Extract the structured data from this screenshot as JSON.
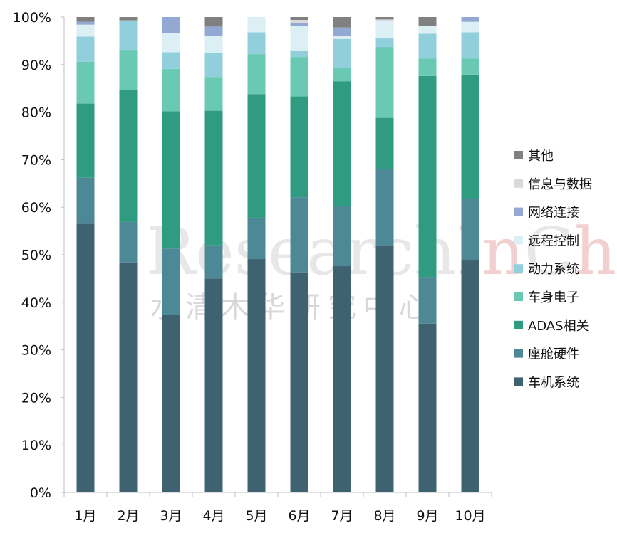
{
  "watermark": {
    "en_main": "Research",
    "en_hl1": "In",
    "en_mid": "C",
    "en_hl2": "hina",
    "cn": "水清木华研究中心"
  },
  "chart_data": {
    "type": "bar",
    "stacked": true,
    "categories": [
      "1月",
      "2月",
      "3月",
      "4月",
      "5月",
      "6月",
      "7月",
      "8月",
      "9月",
      "10月"
    ],
    "ylim": [
      0,
      100
    ],
    "yticks": [
      "0%",
      "10%",
      "20%",
      "30%",
      "40%",
      "50%",
      "60%",
      "70%",
      "80%",
      "90%",
      "100%"
    ],
    "grid": false,
    "legend_position": "right",
    "series": [
      {
        "name": "车机系统",
        "color": "#3f6270",
        "values": [
          56.5,
          48.4,
          37.3,
          45.0,
          49.1,
          46.3,
          47.6,
          52.0,
          35.5,
          48.8
        ]
      },
      {
        "name": "座舱硬件",
        "color": "#4d8896",
        "values": [
          9.7,
          8.5,
          14.0,
          7.0,
          8.7,
          15.8,
          12.6,
          16.0,
          9.8,
          13.1
        ]
      },
      {
        "name": "ADAS相关",
        "color": "#2f9b80",
        "values": [
          15.6,
          27.7,
          28.9,
          28.3,
          26.0,
          21.2,
          26.3,
          10.8,
          42.3,
          26.0
        ]
      },
      {
        "name": "车身电子",
        "color": "#6ac9b3",
        "values": [
          8.8,
          8.5,
          8.9,
          7.1,
          8.4,
          8.3,
          2.8,
          14.9,
          3.7,
          3.4
        ]
      },
      {
        "name": "动力系统",
        "color": "#92cfdc",
        "values": [
          5.3,
          6.1,
          3.5,
          5.0,
          4.6,
          1.4,
          6.1,
          1.8,
          5.2,
          5.5
        ]
      },
      {
        "name": "远程控制",
        "color": "#dbeff4",
        "values": [
          2.5,
          0.0,
          4.0,
          3.7,
          3.2,
          5.2,
          0.7,
          3.6,
          1.6,
          2.2
        ]
      },
      {
        "name": "网络连接",
        "color": "#93a9d4",
        "values": [
          0.6,
          0.0,
          3.4,
          1.9,
          0.0,
          0.6,
          1.7,
          0.0,
          0.0,
          1.0
        ]
      },
      {
        "name": "信息与数据",
        "color": "#d9d9d9",
        "values": [
          0.0,
          0.1,
          0.0,
          0.0,
          0.0,
          0.6,
          0.0,
          0.4,
          0.1,
          0.0
        ]
      },
      {
        "name": "其他",
        "color": "#808080",
        "values": [
          1.0,
          0.7,
          0.0,
          2.0,
          0.0,
          0.6,
          2.2,
          0.5,
          1.8,
          0.0
        ]
      }
    ]
  }
}
